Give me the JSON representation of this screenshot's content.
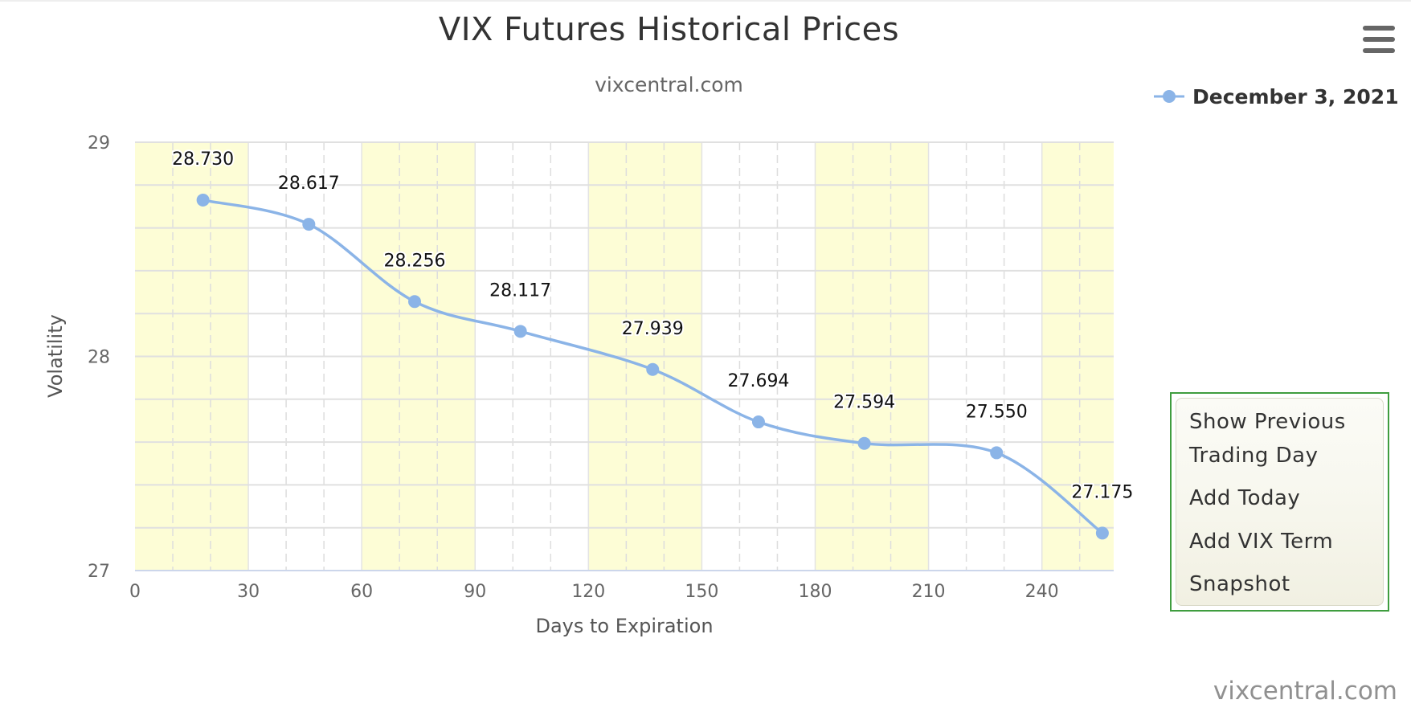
{
  "chart_data": {
    "type": "line",
    "title": "VIX Futures Historical Prices",
    "subtitle": "vixcentral.com",
    "xlabel": "Days to Expiration",
    "ylabel": "Volatility",
    "xlim": [
      0,
      259
    ],
    "ylim": [
      27,
      29
    ],
    "x_ticks": [
      0,
      30,
      60,
      90,
      120,
      150,
      180,
      210,
      240
    ],
    "y_ticks": [
      27,
      28,
      29
    ],
    "grid": true,
    "legend_position": "top-right",
    "series": [
      {
        "name": "December 3, 2021",
        "color": "#8bb4e7",
        "x": [
          18,
          46,
          74,
          102,
          137,
          165,
          193,
          228,
          256
        ],
        "y": [
          28.73,
          28.617,
          28.256,
          28.117,
          27.939,
          27.694,
          27.594,
          27.55,
          27.175
        ],
        "labels": [
          "28.730",
          "28.617",
          "28.256",
          "28.117",
          "27.939",
          "27.694",
          "27.594",
          "27.550",
          "27.175"
        ]
      }
    ],
    "band_color": "#fdfdd6"
  },
  "menu": {
    "icon": "hamburger-menu-icon"
  },
  "buttons": {
    "show_previous_line1": "Show Previous",
    "show_previous_line2": "Trading Day",
    "add_today": "Add Today",
    "add_vix_line1": "Add VIX Term",
    "add_vix_line2": "Snapshot"
  },
  "credit": "vixcentral.com"
}
